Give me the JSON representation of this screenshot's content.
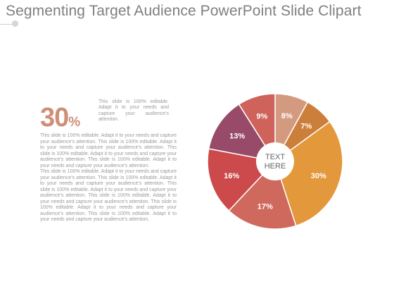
{
  "slide": {
    "title": "Segmenting Target Audience PowerPoint Slide Clipart"
  },
  "highlight": {
    "value": "30",
    "symbol": "%",
    "caption": "This slide is 100% editable. Adapt it to your needs and capture your audience's attention."
  },
  "body": {
    "paragraphs": [
      "This slide is 100% editable. Adapt it to your needs and capture your audience's attention. This slide is 100% editable. Adapt it to your needs and capture your audience's attention. This slide is 100% editable. Adapt it to your needs and capture your audience's attention. This slide is 100% editable. Adapt it to your needs and capture your audience's attention.",
      "This slide is 100% editable. Adapt it to your needs and capture your audience's attention. This slide is 100% editable. Adapt it to your needs and capture your audience's attention. This slide is 100% editable. Adapt it to your needs and capture your audience's attention. This slide is 100% editable. Adapt it to your needs and capture your audience's attention. This slide is 100% editable. Adapt it to your needs and capture your audience's attention. This slide is 100% editable. Adapt it to your needs and capture your audience's attention."
    ]
  },
  "chart_data": {
    "type": "pie",
    "center_label": [
      "TEXT",
      "HERE"
    ],
    "categories": [
      "",
      "",
      "",
      "",
      "",
      "",
      ""
    ],
    "values": [
      8,
      7,
      30,
      17,
      16,
      13,
      9
    ],
    "labels": [
      "8%",
      "7%",
      "30%",
      "17%",
      "16%",
      "13%",
      "9%"
    ],
    "colors": [
      "#d49a80",
      "#cc7f3a",
      "#e3983b",
      "#d0695d",
      "#cc4a4c",
      "#984a69",
      "#cf625a"
    ],
    "segment_border": "#ffffff",
    "label_color": "#ffffff",
    "center_fill": "#ffffff",
    "center_text_color": "#666666"
  }
}
